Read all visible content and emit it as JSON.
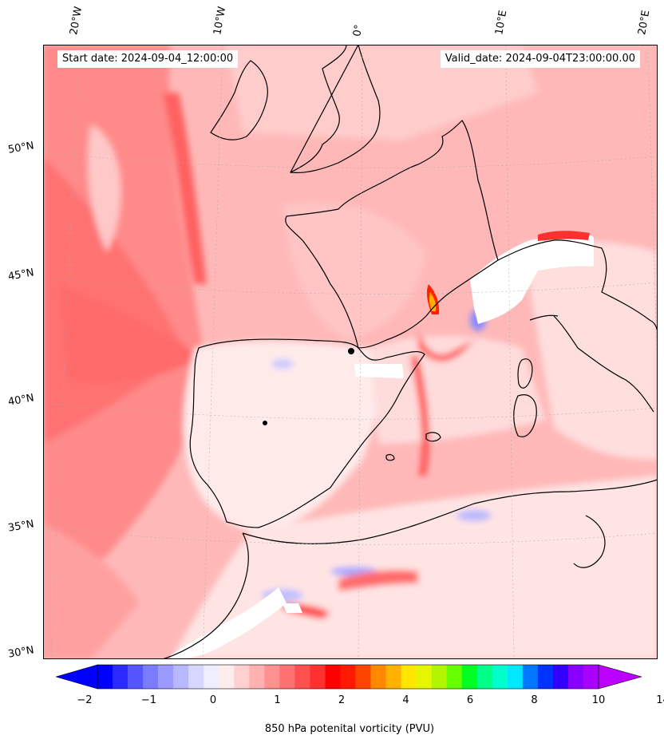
{
  "map": {
    "start_date": "Start date: 2024-09-04_12:00:00",
    "valid_date": "Valid_date: 2024-09-04T23:00:00.00",
    "lon_labels": [
      "20°W",
      "10°W",
      "0°",
      "10°E",
      "20°E"
    ],
    "lat_labels": [
      "50°N",
      "45°N",
      "40°N",
      "35°N",
      "30°N"
    ]
  },
  "colorbar": {
    "title": "850 hPa potenital vorticity (PVU)",
    "ticks": [
      "−2",
      "−1",
      "0",
      "1",
      "2",
      "4",
      "6",
      "8",
      "10",
      "14"
    ],
    "colors": [
      "#0000ff",
      "#2b2bff",
      "#5555ff",
      "#7b7bff",
      "#9b9bff",
      "#b8b8ff",
      "#d6d6ff",
      "#eeeeff",
      "#ffecec",
      "#ffd0d0",
      "#ffb0b0",
      "#ff9090",
      "#ff7070",
      "#ff5050",
      "#ff3030",
      "#ff0000",
      "#ff1a00",
      "#ff4400",
      "#ff8800",
      "#ffb000",
      "#ffe600",
      "#e6f500",
      "#b2f500",
      "#66ff00",
      "#00ff22",
      "#00ff88",
      "#00ffcc",
      "#00e8ff",
      "#0077ff",
      "#0033ff",
      "#3300ff",
      "#8800ff",
      "#aa00ff"
    ],
    "low_extend_color": "#0000ff",
    "high_extend_color": "#bb00ff"
  }
}
